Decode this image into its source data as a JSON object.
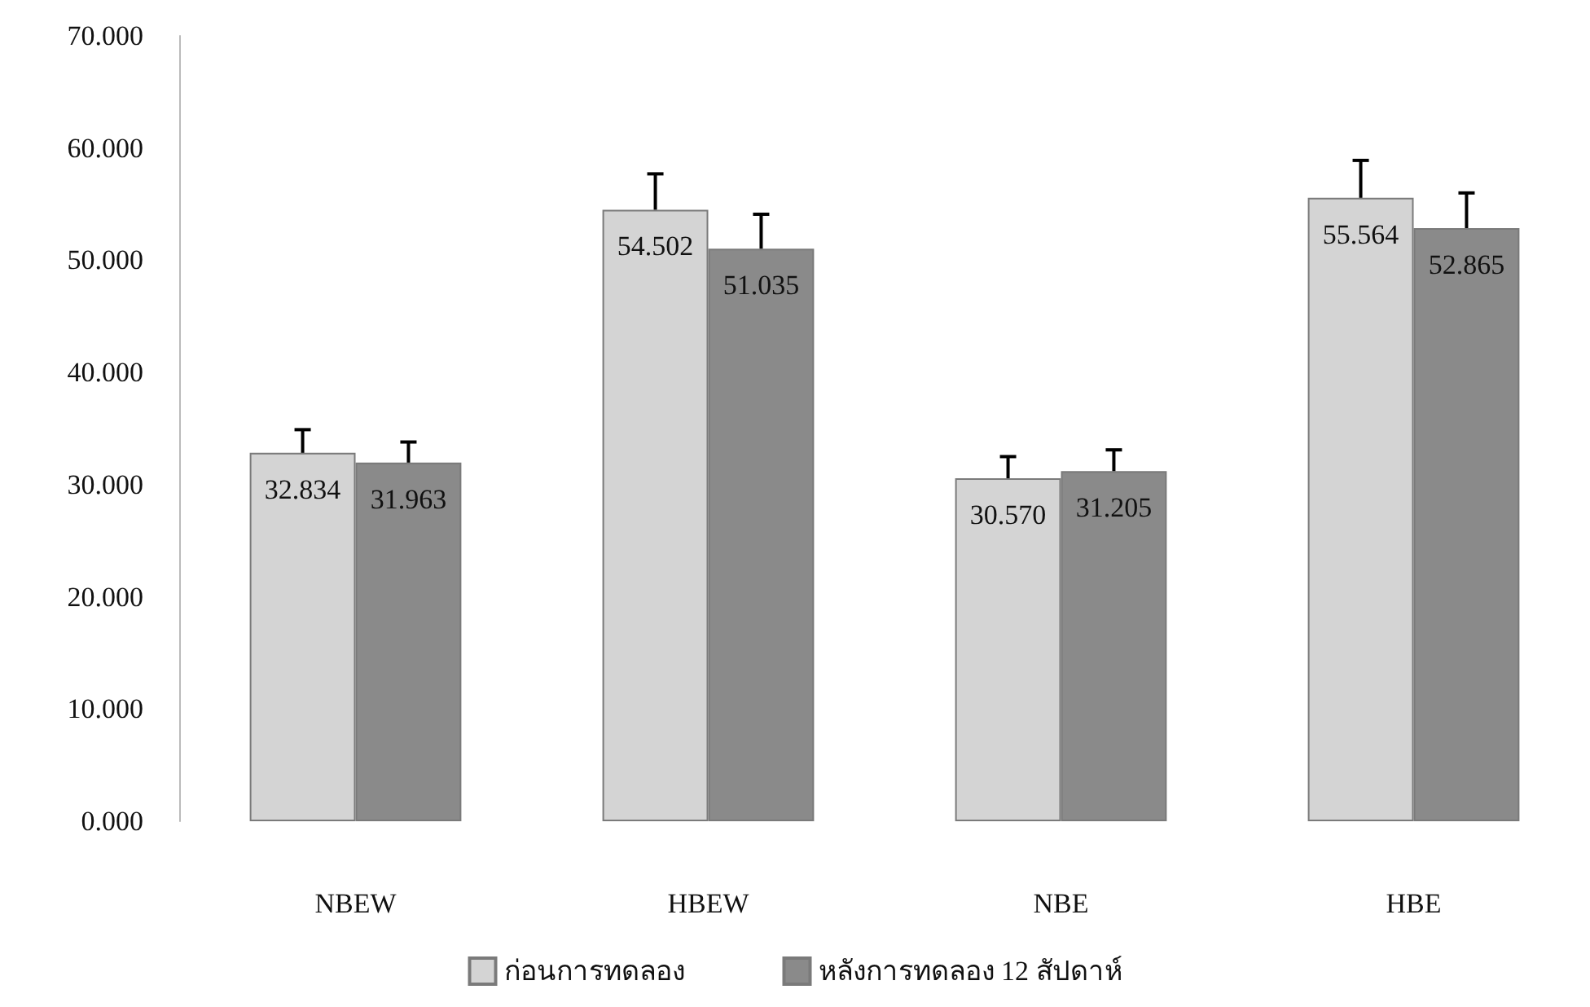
{
  "chart_data": {
    "type": "bar",
    "categories": [
      "NBEW",
      "HBEW",
      "NBE",
      "HBE"
    ],
    "series": [
      {
        "name": "ก่อนการทดลอง",
        "color": "#d4d4d4",
        "values": [
          32.834,
          54.502,
          30.57,
          55.564
        ],
        "value_labels": [
          "32.834",
          "54.502",
          "30.570",
          "55.564"
        ],
        "errors": [
          [
            32.834,
            34.9
          ],
          [
            54.502,
            57.7
          ],
          [
            30.57,
            32.5
          ],
          [
            55.564,
            58.9
          ]
        ]
      },
      {
        "name": "หลังการทดลอง 12 สัปดาห์",
        "color": "#8a8a8a",
        "values": [
          31.963,
          51.035,
          31.205,
          52.865
        ],
        "value_labels": [
          "31.963",
          "51.035",
          "31.205",
          "52.865"
        ],
        "errors": [
          [
            31.963,
            33.8
          ],
          [
            51.035,
            54.1
          ],
          [
            31.205,
            33.1
          ],
          [
            52.865,
            56.0
          ]
        ]
      }
    ],
    "ylim": [
      0,
      70
    ],
    "yticks": [
      {
        "value": 0,
        "label": "0.000"
      },
      {
        "value": 10,
        "label": "10.000"
      },
      {
        "value": 20,
        "label": "20.000"
      },
      {
        "value": 30,
        "label": "30.000"
      },
      {
        "value": 40,
        "label": "40.000"
      },
      {
        "value": 50,
        "label": "50.000"
      },
      {
        "value": 60,
        "label": "60.000"
      },
      {
        "value": 70,
        "label": "70.000"
      }
    ],
    "grid": false,
    "legend": "bottom"
  }
}
